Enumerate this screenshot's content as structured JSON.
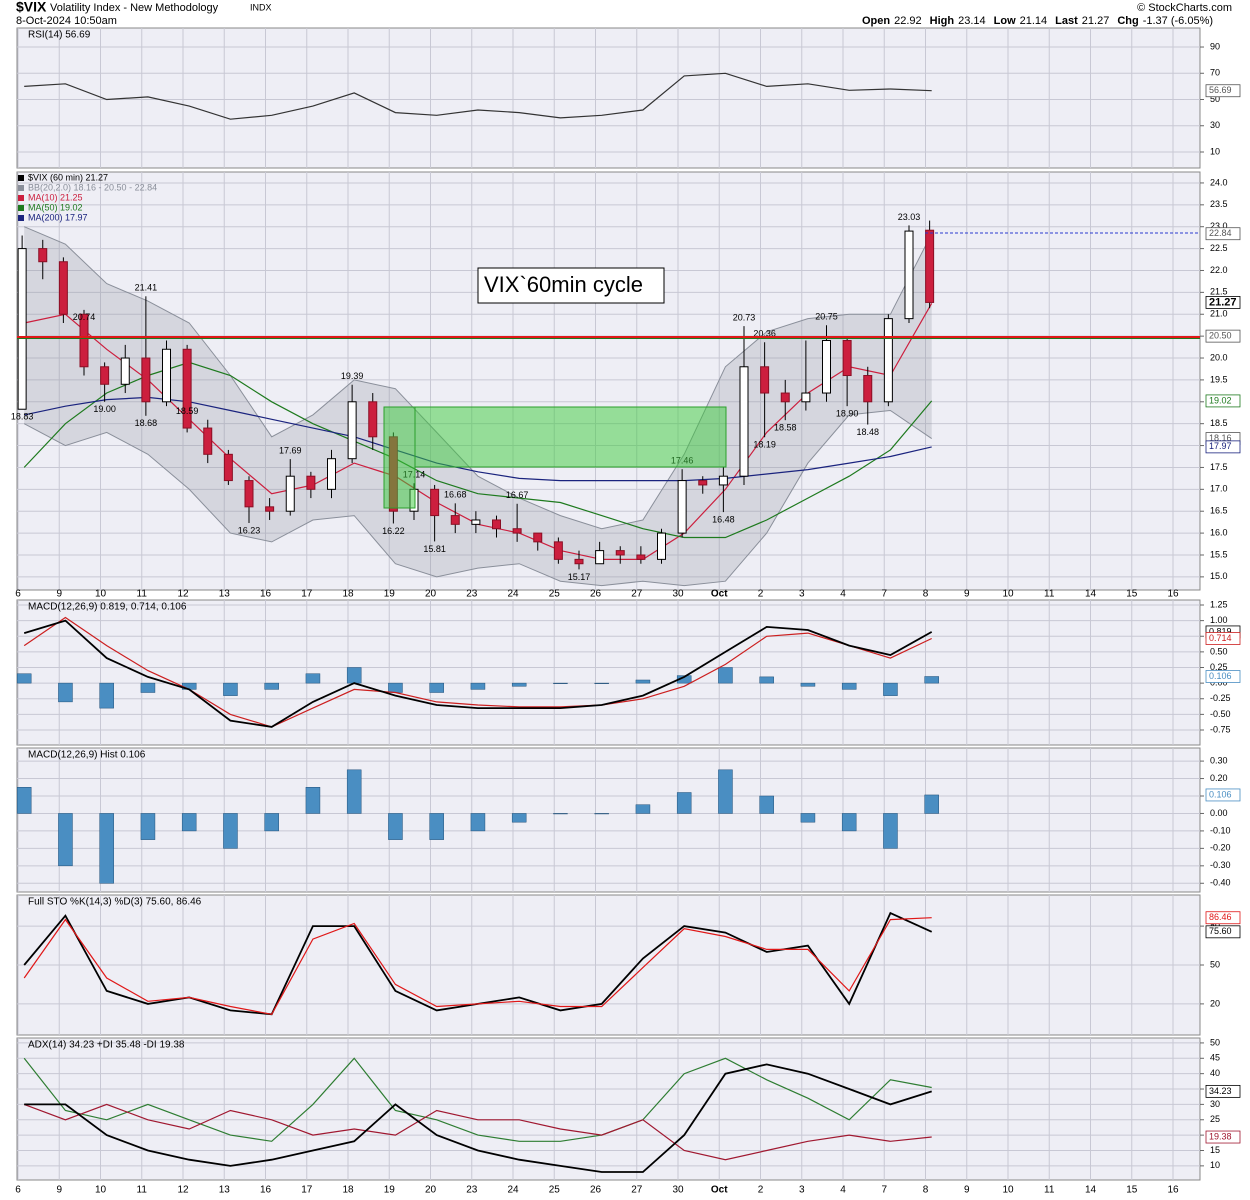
{
  "header": {
    "symbol": "$VIX",
    "name": "Volatility Index - New Methodology",
    "exchange": "INDX",
    "timestamp": "8-Oct-2024 10:50am",
    "credit": "© StockCharts.com",
    "quote": [
      {
        "k": "Open",
        "v": "22.92"
      },
      {
        "k": "High",
        "v": "23.14"
      },
      {
        "k": "Low",
        "v": "21.14"
      },
      {
        "k": "Last",
        "v": "21.27"
      },
      {
        "k": "Chg",
        "v": "-1.37 (-6.05%)"
      }
    ]
  },
  "annotation": "VIX`60min cycle",
  "x_axis": {
    "categories": [
      "6",
      "9",
      "10",
      "11",
      "12",
      "13",
      "16",
      "17",
      "18",
      "19",
      "20",
      "23",
      "24",
      "25",
      "26",
      "27",
      "30",
      "Oct",
      "2",
      "3",
      "4",
      "7",
      "8",
      "9",
      "10",
      "11",
      "14",
      "15",
      "16"
    ]
  },
  "chart_data": [
    {
      "type": "line",
      "legend": "RSI(14) 56.69",
      "ylim": [
        -2.2,
        104.5
      ],
      "yticks": [
        10,
        30,
        50,
        70,
        90
      ],
      "grid": true,
      "series": [
        {
          "color": "#333333",
          "values": [
            60,
            62,
            50,
            52,
            45,
            35,
            38,
            45,
            55,
            40,
            38,
            42,
            40,
            36,
            38,
            42,
            68,
            70,
            60,
            62,
            57,
            58,
            56.69
          ]
        }
      ],
      "last_labels": [
        {
          "value": 56.69,
          "label": "56.69",
          "color": "#555555"
        }
      ]
    },
    {
      "type": "candlestick",
      "legend": "$VIX (60 min) 21.27",
      "ylim": [
        14.7,
        24.25
      ],
      "grid": true,
      "yticks": [
        {
          "value": 15,
          "label": "15.0"
        },
        {
          "value": 15.5,
          "label": "15.5"
        },
        {
          "value": 16,
          "label": "16.0"
        },
        {
          "value": 16.5,
          "label": "16.5"
        },
        {
          "value": 17,
          "label": "17.0"
        },
        {
          "value": 17.5,
          "label": "17.5"
        },
        {
          "value": 18,
          "label": "18.0"
        },
        {
          "value": 18.5,
          "label": "18.5"
        },
        {
          "value": 19,
          "label": "19.0"
        },
        {
          "value": 19.5,
          "label": "19.5"
        },
        {
          "value": 20,
          "label": "20.0"
        },
        {
          "value": 20.5,
          "label": "20.5"
        },
        {
          "value": 21,
          "label": "21.0"
        },
        {
          "value": 21.5,
          "label": "21.5"
        },
        {
          "value": 22,
          "label": "22.0"
        },
        {
          "value": 22.5,
          "label": "22.5"
        },
        {
          "value": 23,
          "label": "23.0"
        },
        {
          "value": 23.5,
          "label": "23.5"
        },
        {
          "value": 24,
          "label": "24.0"
        }
      ],
      "candles": {
        "up_color": "#ffffff",
        "down_color": "#cc1f3e",
        "open": [
          18.83,
          22.5,
          22.2,
          21.0,
          19.8,
          19.4,
          20.0,
          19.0,
          20.2,
          18.4,
          17.8,
          17.2,
          16.6,
          16.5,
          17.3,
          17.0,
          17.7,
          19.0,
          18.2,
          16.5,
          17.0,
          16.4,
          16.2,
          16.3,
          16.1,
          16.0,
          15.8,
          15.4,
          15.3,
          15.6,
          15.5,
          15.4,
          16.0,
          17.2,
          17.1,
          17.3,
          19.8,
          19.2,
          19.0,
          19.2,
          20.4,
          19.6,
          19.0,
          20.9,
          22.92
        ],
        "high": [
          22.8,
          22.7,
          22.3,
          21.1,
          19.9,
          20.3,
          21.41,
          20.4,
          20.3,
          18.59,
          17.9,
          17.3,
          16.8,
          17.69,
          17.4,
          17.9,
          19.39,
          19.2,
          18.3,
          17.14,
          17.1,
          16.68,
          16.5,
          16.4,
          16.67,
          16.0,
          15.9,
          15.6,
          15.8,
          15.7,
          15.7,
          16.1,
          17.46,
          17.3,
          17.5,
          20.73,
          20.36,
          19.5,
          20.4,
          20.75,
          20.5,
          19.8,
          21.0,
          23.03,
          23.14
        ],
        "low": [
          18.83,
          21.8,
          20.8,
          19.6,
          19.0,
          19.2,
          18.68,
          18.9,
          18.3,
          17.6,
          17.1,
          16.23,
          16.3,
          16.4,
          16.8,
          16.8,
          17.6,
          17.9,
          16.22,
          16.3,
          15.81,
          16.0,
          16.0,
          15.9,
          15.8,
          15.6,
          15.3,
          15.17,
          15.3,
          15.3,
          15.3,
          15.3,
          15.9,
          16.9,
          16.48,
          17.1,
          18.19,
          18.58,
          18.8,
          19.0,
          18.9,
          18.48,
          18.9,
          20.8,
          21.14
        ],
        "close": [
          22.5,
          22.2,
          21.0,
          19.8,
          19.4,
          20.0,
          19.0,
          20.2,
          18.4,
          17.8,
          17.2,
          16.6,
          16.5,
          17.3,
          17.0,
          17.7,
          19.0,
          18.2,
          16.5,
          17.0,
          16.4,
          16.2,
          16.3,
          16.1,
          16.0,
          15.8,
          15.4,
          15.3,
          15.6,
          15.5,
          15.4,
          16.0,
          17.2,
          17.1,
          17.3,
          19.8,
          19.2,
          19.0,
          19.2,
          20.4,
          19.6,
          19.0,
          20.9,
          22.9,
          21.27
        ]
      },
      "series": [
        {
          "type": "band",
          "name": "BB(20,2.0) 18.16 - 20.50 - 22.84",
          "color": "#8a8f9a",
          "upper": [
            23.0,
            22.6,
            21.7,
            21.3,
            20.8,
            19.6,
            18.2,
            18.7,
            19.5,
            19.3,
            18.3,
            17.3,
            16.8,
            16.4,
            16.1,
            16.3,
            17.8,
            19.8,
            20.6,
            20.9,
            21.0,
            21.0,
            22.84
          ],
          "lower": [
            18.5,
            18.0,
            18.3,
            17.8,
            17.0,
            16.0,
            15.8,
            16.3,
            16.4,
            15.3,
            15.0,
            15.2,
            15.3,
            14.9,
            14.8,
            14.9,
            14.8,
            14.9,
            16.0,
            17.6,
            18.7,
            18.8,
            18.16
          ]
        },
        {
          "name": "MA(10) 21.25",
          "color": "#cc1f3e",
          "values": [
            20.8,
            21.0,
            20.2,
            19.5,
            18.6,
            17.7,
            16.9,
            17.1,
            17.6,
            17.3,
            16.7,
            16.2,
            16.0,
            15.6,
            15.4,
            15.4,
            16.0,
            17.0,
            18.3,
            19.2,
            19.8,
            19.6,
            21.25
          ]
        },
        {
          "name": "MA(50) 19.02",
          "color": "#1e7a1e",
          "values": [
            17.5,
            18.5,
            19.2,
            19.6,
            19.9,
            19.6,
            19.0,
            18.5,
            18.1,
            17.7,
            17.2,
            16.9,
            16.8,
            16.7,
            16.4,
            16.1,
            15.9,
            15.9,
            16.3,
            16.8,
            17.3,
            17.9,
            19.02
          ]
        },
        {
          "name": "MA(200) 17.97",
          "color": "#1a237e",
          "values": [
            18.7,
            18.9,
            19.05,
            19.1,
            19.0,
            18.8,
            18.6,
            18.4,
            18.2,
            17.9,
            17.6,
            17.4,
            17.25,
            17.2,
            17.2,
            17.2,
            17.2,
            17.25,
            17.35,
            17.45,
            17.6,
            17.75,
            17.97
          ]
        }
      ],
      "price_labels": [
        {
          "value": 18.83,
          "label": "18.83",
          "x": 0
        },
        {
          "value": 20.74,
          "label": "20.74",
          "x": 3
        },
        {
          "value": 21.41,
          "label": "21.41",
          "x": 6
        },
        {
          "value": 19.0,
          "label": "19.00",
          "x": 4
        },
        {
          "value": 18.68,
          "label": "18.68",
          "x": 6
        },
        {
          "value": 18.59,
          "label": "18.59",
          "x": 8
        },
        {
          "value": 17.69,
          "label": "17.69",
          "x": 13
        },
        {
          "value": 16.23,
          "label": "16.23",
          "x": 11
        },
        {
          "value": 19.39,
          "label": "19.39",
          "x": 16
        },
        {
          "value": 16.22,
          "label": "16.22",
          "x": 18
        },
        {
          "value": 17.14,
          "label": "17.14",
          "x": 19
        },
        {
          "value": 16.68,
          "label": "16.68",
          "x": 21
        },
        {
          "value": 15.81,
          "label": "15.81",
          "x": 20
        },
        {
          "value": 16.67,
          "label": "16.67",
          "x": 24
        },
        {
          "value": 15.17,
          "label": "15.17",
          "x": 27
        },
        {
          "value": 17.46,
          "label": "17.46",
          "x": 32
        },
        {
          "value": 16.48,
          "label": "16.48",
          "x": 34
        },
        {
          "value": 20.73,
          "label": "20.73",
          "x": 35
        },
        {
          "value": 18.19,
          "label": "18.19",
          "x": 36
        },
        {
          "value": 20.36,
          "label": "20.36",
          "x": 36
        },
        {
          "value": 18.58,
          "label": "18.58",
          "x": 37
        },
        {
          "value": 20.75,
          "label": "20.75",
          "x": 39
        },
        {
          "value": 18.9,
          "label": "18.90",
          "x": 40
        },
        {
          "value": 18.48,
          "label": "18.48",
          "x": 41
        },
        {
          "value": 23.03,
          "label": "23.03",
          "x": 43
        }
      ],
      "last_labels": [
        {
          "value": 22.84,
          "label": "22.84",
          "color": "#555555"
        },
        {
          "value": 21.27,
          "label": "21.27",
          "color": "#000000"
        },
        {
          "value": 20.5,
          "label": "20.50",
          "color": "#555555"
        },
        {
          "value": 19.02,
          "label": "19.02",
          "color": "#1e7a1e"
        },
        {
          "value": 18.16,
          "label": "18.16",
          "color": "#555555"
        },
        {
          "value": 17.97,
          "label": "17.97",
          "color": "#1a237e"
        }
      ]
    },
    {
      "type": "line",
      "legend": "MACD(12,26,9) 0.819, 0.714, 0.106",
      "ylim": [
        -0.99,
        1.33
      ],
      "grid": true,
      "yticks": [
        {
          "value": -0.75,
          "label": "-0.75"
        },
        {
          "value": -0.5,
          "label": "-0.50"
        },
        {
          "value": -0.25,
          "label": "-0.25"
        },
        {
          "value": 0,
          "label": "0.00"
        },
        {
          "value": 0.25,
          "label": "0.25"
        },
        {
          "value": 0.5,
          "label": "0.50"
        },
        {
          "value": 0.75,
          "label": "0.75"
        },
        {
          "value": 1,
          "label": "1.00"
        },
        {
          "value": 1.25,
          "label": "1.25"
        }
      ],
      "series": [
        {
          "type": "bar",
          "color": "#4a8ec2",
          "values": [
            0.15,
            -0.3,
            -0.4,
            -0.15,
            -0.1,
            -0.2,
            -0.1,
            0.15,
            0.25,
            -0.15,
            -0.15,
            -0.1,
            -0.05,
            0.0,
            0.0,
            0.05,
            0.12,
            0.25,
            0.1,
            -0.05,
            -0.1,
            -0.2,
            0.106
          ]
        },
        {
          "color": "#cc1f1f",
          "values": [
            0.6,
            1.05,
            0.6,
            0.2,
            -0.1,
            -0.5,
            -0.7,
            -0.4,
            -0.1,
            -0.15,
            -0.3,
            -0.35,
            -0.38,
            -0.38,
            -0.35,
            -0.25,
            -0.05,
            0.3,
            0.75,
            0.8,
            0.6,
            0.4,
            0.714
          ]
        },
        {
          "color": "#000000",
          "values": [
            0.8,
            1.0,
            0.4,
            0.1,
            -0.1,
            -0.6,
            -0.7,
            -0.3,
            0.0,
            -0.2,
            -0.35,
            -0.4,
            -0.4,
            -0.4,
            -0.35,
            -0.2,
            0.1,
            0.5,
            0.9,
            0.85,
            0.6,
            0.45,
            0.819
          ]
        }
      ],
      "last_labels": [
        {
          "value": 0.819,
          "label": "0.819",
          "color": "#000000"
        },
        {
          "value": 0.714,
          "label": "0.714",
          "color": "#cc1f1f"
        },
        {
          "value": 0.106,
          "label": "0.106",
          "color": "#4a8ec2"
        }
      ]
    },
    {
      "type": "bar",
      "legend": "MACD(12,26,9) Hist 0.106",
      "ylim": [
        -0.45,
        0.375
      ],
      "grid": true,
      "yticks": [
        {
          "value": -0.4,
          "label": "-0.40"
        },
        {
          "value": -0.3,
          "label": "-0.30"
        },
        {
          "value": -0.2,
          "label": "-0.20"
        },
        {
          "value": -0.1,
          "label": "-0.10"
        },
        {
          "value": 0,
          "label": "0.00"
        },
        {
          "value": 0.1,
          "label": "0.10"
        },
        {
          "value": 0.2,
          "label": "0.20"
        },
        {
          "value": 0.3,
          "label": "0.30"
        }
      ],
      "series": [
        {
          "type": "bar",
          "color": "#4a8ec2",
          "values": [
            0.15,
            -0.3,
            -0.4,
            -0.15,
            -0.1,
            -0.2,
            -0.1,
            0.15,
            0.25,
            -0.15,
            -0.15,
            -0.1,
            -0.05,
            0.0,
            0.0,
            0.05,
            0.12,
            0.25,
            0.1,
            -0.05,
            -0.1,
            -0.2,
            0.106
          ]
        }
      ],
      "last_labels": [
        {
          "value": 0.106,
          "label": "0.106",
          "color": "#4a8ec2"
        }
      ]
    },
    {
      "type": "line",
      "legend": "Full STO %K(14,3) %D(3) 75.60, 86.46",
      "ylim": [
        -4,
        104
      ],
      "grid": true,
      "yticks": [
        20,
        50,
        80
      ],
      "series": [
        {
          "color": "#000000",
          "values": [
            50,
            88,
            30,
            20,
            25,
            15,
            12,
            80,
            80,
            30,
            15,
            20,
            25,
            15,
            20,
            55,
            80,
            75,
            60,
            65,
            20,
            90,
            75.6
          ]
        },
        {
          "color": "#e01818",
          "values": [
            40,
            85,
            40,
            22,
            25,
            18,
            12,
            70,
            82,
            35,
            18,
            20,
            22,
            18,
            18,
            48,
            78,
            72,
            62,
            62,
            30,
            85,
            86.46
          ]
        }
      ],
      "last_labels": [
        {
          "value": 86.46,
          "label": "86.46",
          "color": "#e01818"
        },
        {
          "value": 75.6,
          "label": "75.60",
          "color": "#000000"
        }
      ]
    },
    {
      "type": "line",
      "legend": "ADX(14) 34.23 +DI 35.48 -DI 19.38",
      "ylim": [
        5.4,
        51.6
      ],
      "grid": true,
      "yticks": [
        10,
        15,
        20,
        25,
        30,
        35,
        40,
        45,
        50
      ],
      "series": [
        {
          "color": "#2e7d32",
          "values": [
            45,
            28,
            25,
            30,
            25,
            20,
            18,
            30,
            45,
            28,
            25,
            20,
            18,
            18,
            20,
            25,
            40,
            45,
            38,
            32,
            25,
            38,
            35.48
          ]
        },
        {
          "color": "#a01830",
          "values": [
            30,
            25,
            30,
            25,
            22,
            28,
            25,
            20,
            22,
            20,
            28,
            25,
            25,
            22,
            20,
            25,
            15,
            12,
            15,
            18,
            20,
            18,
            19.38
          ]
        },
        {
          "color": "#000000",
          "values": [
            30,
            30,
            20,
            15,
            12,
            10,
            12,
            15,
            18,
            30,
            20,
            15,
            12,
            10,
            8,
            8,
            20,
            40,
            43,
            40,
            35,
            30,
            34.23
          ]
        }
      ],
      "last_labels": [
        {
          "value": 34.23,
          "label": "34.23",
          "color": "#000000"
        },
        {
          "value": 19.38,
          "label": "19.38",
          "color": "#a01830"
        }
      ]
    }
  ]
}
